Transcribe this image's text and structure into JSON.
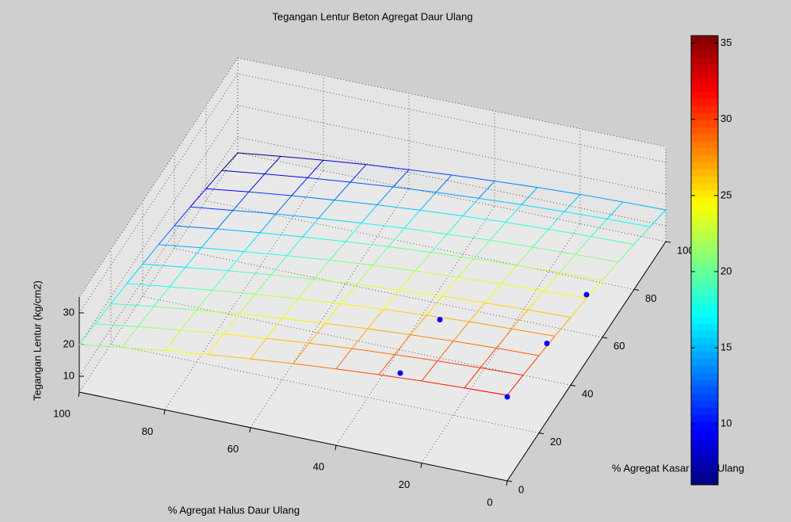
{
  "chart_data": {
    "type": "mesh3d",
    "title": "Tegangan Lentur Beton Agregat Daur Ulang",
    "xlabel": "% Agregat Halus Daur Ulang",
    "ylabel": "% Agregat Kasar Daur Ulang",
    "zlabel": "Tegangan Lentur (kg/cm2)",
    "x": [
      0,
      10,
      20,
      30,
      40,
      50,
      60,
      70,
      80,
      90,
      100
    ],
    "y": [
      0,
      10,
      20,
      30,
      40,
      50,
      60,
      70,
      80,
      90,
      100
    ],
    "z": [
      [
        32,
        31.5,
        30.9,
        30.1,
        29.1,
        28,
        26.7,
        25.3,
        23.7,
        21.9,
        20
      ],
      [
        30.8,
        30.3,
        29.7,
        28.9,
        28.0,
        26.9,
        25.6,
        24.2,
        22.6,
        20.9,
        19.0
      ],
      [
        29.4,
        29.0,
        28.4,
        27.6,
        26.7,
        25.6,
        24.4,
        23.0,
        21.4,
        19.7,
        17.8
      ],
      [
        28.0,
        27.5,
        27.0,
        26.2,
        25.3,
        24.3,
        23.0,
        21.7,
        20.1,
        18.4,
        16.6
      ],
      [
        26.4,
        26.0,
        25.4,
        24.7,
        23.8,
        22.8,
        21.6,
        20.2,
        18.7,
        17.0,
        15.2
      ],
      [
        24.8,
        24.4,
        23.8,
        23.1,
        22.3,
        21.3,
        20.1,
        18.7,
        17.2,
        15.6,
        13.8
      ],
      [
        23.0,
        22.6,
        22.1,
        21.4,
        20.6,
        19.6,
        18.4,
        17.1,
        15.6,
        14.0,
        12.2
      ],
      [
        21.2,
        20.8,
        20.3,
        19.7,
        18.8,
        17.9,
        16.7,
        15.4,
        14.0,
        12.3,
        10.6
      ],
      [
        19.2,
        18.9,
        18.4,
        17.8,
        17.0,
        16.0,
        14.9,
        13.6,
        12.2,
        10.6,
        8.8
      ],
      [
        17.2,
        16.9,
        16.4,
        15.8,
        15.0,
        14.1,
        13.0,
        11.7,
        10.3,
        8.7,
        7.0
      ],
      [
        15,
        14.7,
        14.3,
        13.7,
        12.9,
        12,
        10.9,
        9.7,
        8.3,
        6.7,
        5
      ]
    ],
    "xlim": [
      0,
      100
    ],
    "ylim": [
      0,
      100
    ],
    "zlim": [
      5,
      35
    ],
    "xticks": [
      0,
      20,
      40,
      60,
      80,
      100
    ],
    "yticks": [
      0,
      20,
      40,
      60,
      80,
      100
    ],
    "zticks": [
      10,
      20,
      30
    ],
    "grid": true,
    "colormap": "jet",
    "clim": [
      6,
      35.5
    ],
    "colorbar_ticks": [
      10,
      15,
      20,
      25,
      30,
      35
    ],
    "points": {
      "color": "#0000ff",
      "x": [
        0,
        0,
        0,
        25,
        25
      ],
      "y": [
        0,
        25,
        50,
        0,
        25
      ],
      "z": [
        31.5,
        29.5,
        26,
        32,
        30
      ]
    }
  }
}
